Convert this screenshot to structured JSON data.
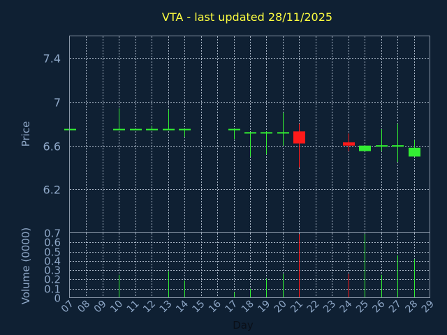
{
  "chart_data": {
    "type": "candlestick",
    "title": "VTA - last updated 28/11/2025",
    "xlabel": "Day",
    "ylabel_price": "Price",
    "ylabel_volume": "Volume (0000)",
    "x_ticks": [
      "07",
      "08",
      "09",
      "10",
      "11",
      "12",
      "13",
      "14",
      "15",
      "16",
      "17",
      "18",
      "19",
      "20",
      "21",
      "22",
      "23",
      "24",
      "25",
      "26",
      "27",
      "28",
      "29"
    ],
    "price_ticks": [
      "6.2",
      "6.6",
      "7",
      "7.4"
    ],
    "price_tick_values": [
      6.2,
      6.6,
      7.0,
      7.4
    ],
    "price_ylim": [
      5.8,
      7.6
    ],
    "volume_ticks": [
      "0",
      "0.1",
      "0.2",
      "0.3",
      "0.4",
      "0.5",
      "0.6",
      "0.7"
    ],
    "volume_tick_values": [
      0,
      0.1,
      0.2,
      0.3,
      0.4,
      0.5,
      0.6,
      0.7
    ],
    "volume_ylim": [
      0,
      0.7
    ],
    "up_color": "#33ee33",
    "down_color": "#ff1a1a",
    "candles": [
      {
        "day": "07",
        "open": 6.75,
        "high": 6.75,
        "low": 6.75,
        "close": 6.75,
        "volume": 0.0
      },
      {
        "day": "10",
        "open": 6.75,
        "high": 6.94,
        "low": 6.75,
        "close": 6.75,
        "volume": 0.25
      },
      {
        "day": "11",
        "open": 6.75,
        "high": 6.75,
        "low": 6.75,
        "close": 6.75,
        "volume": 0.0
      },
      {
        "day": "12",
        "open": 6.75,
        "high": 6.78,
        "low": 6.74,
        "close": 6.75,
        "volume": 0.0
      },
      {
        "day": "13",
        "open": 6.75,
        "high": 6.93,
        "low": 6.75,
        "close": 6.75,
        "volume": 0.29
      },
      {
        "day": "14",
        "open": 6.75,
        "high": 6.75,
        "low": 6.68,
        "close": 6.75,
        "volume": 0.19
      },
      {
        "day": "17",
        "open": 6.75,
        "high": 6.75,
        "low": 6.66,
        "close": 6.75,
        "volume": 0.06
      },
      {
        "day": "18",
        "open": 6.72,
        "high": 6.72,
        "low": 6.5,
        "close": 6.72,
        "volume": 0.1
      },
      {
        "day": "19",
        "open": 6.72,
        "high": 6.73,
        "low": 6.52,
        "close": 6.72,
        "volume": 0.21
      },
      {
        "day": "20",
        "open": 6.72,
        "high": 6.9,
        "low": 6.6,
        "close": 6.72,
        "volume": 0.26
      },
      {
        "day": "21",
        "open": 6.73,
        "high": 6.8,
        "low": 6.4,
        "close": 6.62,
        "volume": 0.69
      },
      {
        "day": "24",
        "open": 6.63,
        "high": 6.71,
        "low": 6.55,
        "close": 6.6,
        "volume": 0.26
      },
      {
        "day": "25",
        "open": 6.55,
        "high": 6.6,
        "low": 6.55,
        "close": 6.6,
        "volume": 0.69
      },
      {
        "day": "26",
        "open": 6.6,
        "high": 6.75,
        "low": 6.55,
        "close": 6.6,
        "volume": 0.25
      },
      {
        "day": "27",
        "open": 6.6,
        "high": 6.8,
        "low": 6.45,
        "close": 6.6,
        "volume": 0.46
      },
      {
        "day": "28",
        "open": 6.5,
        "high": 6.65,
        "low": 6.5,
        "close": 6.58,
        "volume": 0.42
      }
    ]
  }
}
